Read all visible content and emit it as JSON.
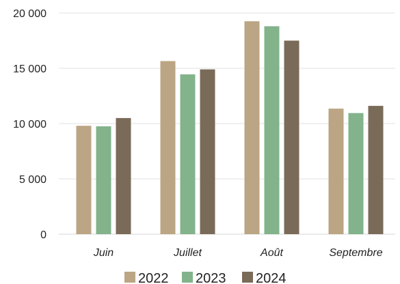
{
  "chart_data": {
    "type": "bar",
    "categories": [
      "Juin",
      "Juillet",
      "Août",
      "Septembre"
    ],
    "series": [
      {
        "name": "2022",
        "color": "#bba584",
        "values": [
          9800,
          15650,
          19250,
          11350
        ]
      },
      {
        "name": "2023",
        "color": "#82b38b",
        "values": [
          9750,
          14450,
          18800,
          10950
        ]
      },
      {
        "name": "2024",
        "color": "#7a6b59",
        "values": [
          10500,
          14900,
          17500,
          11600
        ]
      }
    ],
    "yticks": [
      {
        "value": 0,
        "label": "0"
      },
      {
        "value": 5000,
        "label": "5 000"
      },
      {
        "value": 10000,
        "label": "10 000"
      },
      {
        "value": 15000,
        "label": "15 000"
      },
      {
        "value": 20000,
        "label": "20 000"
      }
    ],
    "ylim": [
      0,
      20000
    ],
    "grid": true,
    "legend_position": "bottom",
    "title": "",
    "xlabel": "",
    "ylabel": ""
  }
}
